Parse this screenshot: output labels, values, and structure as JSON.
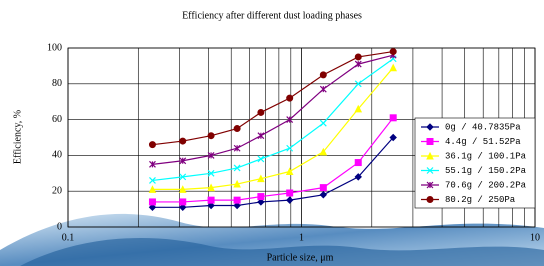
{
  "chart_data": {
    "type": "line",
    "title": "Efficiency after different dust loading phases",
    "x_label": "Particle size, μm",
    "y_label": "Efficiency, %",
    "x": [
      0.23,
      0.31,
      0.41,
      0.53,
      0.67,
      0.89,
      1.24,
      1.75,
      2.47
    ],
    "series": [
      {
        "name": "0g / 40.7835Pa",
        "color": "#000080",
        "marker": "diamond",
        "values": [
          11,
          11,
          12,
          12,
          14,
          15,
          18,
          28,
          50
        ]
      },
      {
        "name": "4.4g / 51.52Pa",
        "color": "#ff00ff",
        "marker": "square",
        "values": [
          14,
          14,
          15,
          15,
          17,
          19,
          22,
          36,
          61
        ]
      },
      {
        "name": "36.1g / 100.1Pa",
        "color": "#ffff00",
        "marker": "triangle",
        "values": [
          21,
          21,
          22,
          24,
          27,
          31,
          42,
          66,
          89
        ]
      },
      {
        "name": "55.1g / 150.2Pa",
        "color": "#00ffff",
        "marker": "x",
        "values": [
          26,
          28,
          30,
          33,
          38,
          44,
          58,
          80,
          94
        ]
      },
      {
        "name": "70.6g / 200.2Pa",
        "color": "#800080",
        "marker": "star",
        "values": [
          35,
          37,
          40,
          44,
          51,
          60,
          77,
          91,
          96
        ]
      },
      {
        "name": "80.2g / 250Pa",
        "color": "#800000",
        "marker": "circle",
        "values": [
          46,
          48,
          51,
          55,
          64,
          72,
          85,
          95,
          98
        ]
      }
    ],
    "xlim": [
      0.1,
      10
    ],
    "xticks": [
      0.1,
      1,
      10
    ],
    "xscale": "log",
    "ylim": [
      0,
      100
    ],
    "yticks": [
      0,
      20,
      40,
      60,
      80,
      100
    ],
    "grid": true,
    "legend": "lower right"
  }
}
